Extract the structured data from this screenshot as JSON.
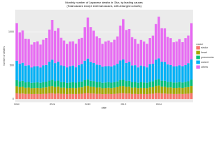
{
  "chart_data": {
    "type": "stacked_bar",
    "title": "Monthly number of Japanese deaths in Oita, by leading causes",
    "subtitle": "(Total causes except external causes, with arranged cohorts)",
    "x_label": "date",
    "y_label": "number of deaths",
    "legend_title": "cause",
    "categories": [
      "2010",
      null,
      null,
      null,
      null,
      null,
      null,
      null,
      null,
      null,
      null,
      null,
      "2011",
      null,
      null,
      null,
      null,
      null,
      null,
      null,
      null,
      null,
      null,
      null,
      "2012",
      null,
      null,
      null,
      null,
      null,
      null,
      null,
      null,
      null,
      null,
      null,
      "2013",
      null,
      null,
      null,
      null,
      null,
      null,
      null,
      null,
      null,
      null,
      null,
      "2014",
      null,
      null,
      null,
      null,
      null,
      null,
      null,
      null,
      null,
      null,
      null
    ],
    "ylim": [
      -50,
      1330
    ],
    "yticks": [
      0,
      500,
      1000
    ],
    "grid": true,
    "legend": "right",
    "series": [
      {
        "name": "stroke",
        "color": "#F8766D",
        "values": [
          85,
          80,
          82,
          76,
          78,
          74,
          75,
          76,
          74,
          77,
          79,
          84,
          86,
          80,
          83,
          77,
          77,
          74,
          76,
          75,
          75,
          78,
          79,
          85,
          88,
          82,
          81,
          77,
          78,
          73,
          75,
          77,
          74,
          77,
          80,
          86,
          87,
          81,
          83,
          76,
          78,
          74,
          76,
          75,
          74,
          78,
          80,
          87,
          89,
          82,
          82,
          78,
          78,
          75,
          75,
          77,
          75,
          78,
          80,
          88
        ]
      },
      {
        "name": "heart",
        "color": "#A3A500",
        "values": [
          105,
          98,
          100,
          92,
          94,
          88,
          90,
          91,
          88,
          93,
          95,
          102,
          108,
          99,
          102,
          93,
          93,
          88,
          90,
          92,
          89,
          94,
          96,
          105,
          110,
          101,
          99,
          94,
          95,
          89,
          91,
          92,
          90,
          93,
          97,
          106,
          108,
          100,
          101,
          93,
          94,
          89,
          92,
          91,
          89,
          95,
          97,
          107,
          112,
          102,
          101,
          94,
          95,
          90,
          91,
          93,
          91,
          95,
          98,
          108
        ]
      },
      {
        "name": "pneumonia",
        "color": "#00BF7D",
        "values": [
          90,
          85,
          88,
          80,
          82,
          78,
          80,
          81,
          79,
          82,
          84,
          88,
          92,
          86,
          89,
          81,
          81,
          78,
          80,
          82,
          79,
          83,
          85,
          90,
          94,
          88,
          87,
          82,
          83,
          79,
          80,
          81,
          80,
          82,
          85,
          91,
          93,
          87,
          88,
          81,
          82,
          79,
          81,
          80,
          79,
          84,
          86,
          92,
          95,
          89,
          88,
          83,
          83,
          80,
          80,
          82,
          80,
          83,
          86,
          93
        ]
      },
      {
        "name": "cancer",
        "color": "#00B0F6",
        "values": [
          290,
          260,
          270,
          250,
          250,
          230,
          240,
          240,
          230,
          250,
          250,
          280,
          300,
          270,
          280,
          250,
          240,
          230,
          240,
          250,
          230,
          250,
          260,
          290,
          310,
          280,
          270,
          260,
          250,
          240,
          240,
          240,
          240,
          250,
          260,
          290,
          300,
          270,
          280,
          250,
          250,
          230,
          250,
          240,
          230,
          260,
          260,
          300,
          310,
          280,
          280,
          260,
          250,
          240,
          240,
          250,
          240,
          250,
          270,
          300
        ]
      },
      {
        "name": "others",
        "color": "#E76BF3",
        "values": [
          560,
          470,
          480,
          400,
          390,
          340,
          360,
          370,
          340,
          380,
          400,
          480,
          590,
          480,
          500,
          410,
          380,
          350,
          370,
          360,
          350,
          390,
          390,
          500,
          610,
          520,
          480,
          420,
          400,
          340,
          370,
          380,
          360,
          380,
          410,
          520,
          600,
          490,
          490,
          420,
          390,
          350,
          380,
          370,
          350,
          390,
          420,
          530,
          620,
          500,
          500,
          410,
          400,
          360,
          370,
          390,
          360,
          400,
          410,
          540
        ]
      }
    ]
  }
}
